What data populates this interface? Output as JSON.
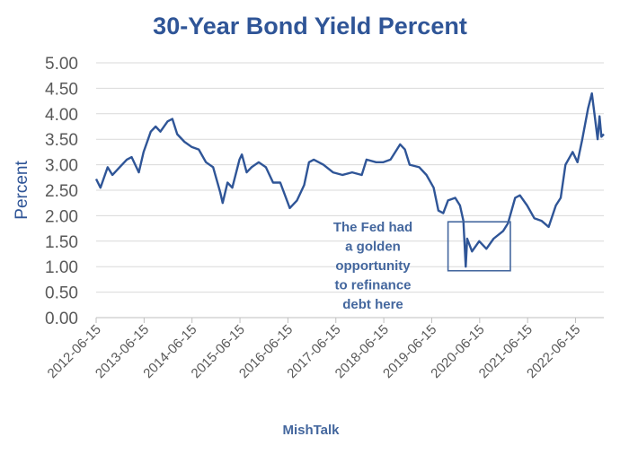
{
  "chart_data": {
    "type": "line",
    "title": "30-Year Bond Yield Percent",
    "xlabel": "",
    "ylabel": "Percent",
    "source_label": "MishTalk",
    "ylim": [
      0,
      5
    ],
    "yticks": [
      "0.00",
      "0.50",
      "1.00",
      "1.50",
      "2.00",
      "2.50",
      "3.00",
      "3.50",
      "4.00",
      "4.50",
      "5.00"
    ],
    "xlim": [
      2012.46,
      2023.05
    ],
    "xticks": [
      {
        "x": 2012.46,
        "label": "2012-06-15"
      },
      {
        "x": 2013.46,
        "label": "2013-06-15"
      },
      {
        "x": 2014.46,
        "label": "2014-06-15"
      },
      {
        "x": 2015.46,
        "label": "2015-06-15"
      },
      {
        "x": 2016.46,
        "label": "2016-06-15"
      },
      {
        "x": 2017.46,
        "label": "2017-06-15"
      },
      {
        "x": 2018.46,
        "label": "2018-06-15"
      },
      {
        "x": 2019.46,
        "label": "2019-06-15"
      },
      {
        "x": 2020.46,
        "label": "2020-06-15"
      },
      {
        "x": 2021.46,
        "label": "2021-06-15"
      },
      {
        "x": 2022.46,
        "label": "2022-06-15"
      }
    ],
    "grid": true,
    "color": "#2F5597",
    "series": [
      {
        "name": "30-Year Bond Yield",
        "x": [
          2012.46,
          2012.55,
          2012.7,
          2012.8,
          2012.95,
          2013.1,
          2013.2,
          2013.35,
          2013.45,
          2013.6,
          2013.7,
          2013.8,
          2013.95,
          2014.05,
          2014.15,
          2014.3,
          2014.45,
          2014.6,
          2014.75,
          2014.9,
          2015.05,
          2015.1,
          2015.2,
          2015.3,
          2015.45,
          2015.5,
          2015.6,
          2015.7,
          2015.85,
          2016.0,
          2016.15,
          2016.3,
          2016.5,
          2016.65,
          2016.8,
          2016.9,
          2017.0,
          2017.2,
          2017.4,
          2017.6,
          2017.8,
          2018.0,
          2018.1,
          2018.3,
          2018.45,
          2018.6,
          2018.8,
          2018.9,
          2019.0,
          2019.2,
          2019.35,
          2019.5,
          2019.6,
          2019.7,
          2019.8,
          2019.95,
          2020.05,
          2020.12,
          2020.17,
          2020.2,
          2020.3,
          2020.45,
          2020.6,
          2020.75,
          2020.95,
          2021.05,
          2021.2,
          2021.3,
          2021.45,
          2021.6,
          2021.75,
          2021.9,
          2022.05,
          2022.15,
          2022.25,
          2022.4,
          2022.5,
          2022.6,
          2022.72,
          2022.8,
          2022.86,
          2022.92,
          2022.96,
          2023.0,
          2023.05
        ],
        "y": [
          2.72,
          2.55,
          2.95,
          2.8,
          2.95,
          3.1,
          3.15,
          2.85,
          3.25,
          3.65,
          3.75,
          3.65,
          3.85,
          3.9,
          3.6,
          3.45,
          3.35,
          3.3,
          3.05,
          2.95,
          2.45,
          2.25,
          2.65,
          2.55,
          3.1,
          3.2,
          2.85,
          2.95,
          3.05,
          2.95,
          2.65,
          2.65,
          2.15,
          2.3,
          2.6,
          3.05,
          3.1,
          3.0,
          2.85,
          2.8,
          2.85,
          2.8,
          3.1,
          3.05,
          3.05,
          3.1,
          3.4,
          3.3,
          3.0,
          2.95,
          2.8,
          2.55,
          2.1,
          2.05,
          2.3,
          2.35,
          2.2,
          1.9,
          1.0,
          1.55,
          1.3,
          1.5,
          1.35,
          1.55,
          1.7,
          1.85,
          2.35,
          2.4,
          2.2,
          1.95,
          1.9,
          1.78,
          2.2,
          2.35,
          3.0,
          3.25,
          3.05,
          3.5,
          4.1,
          4.4,
          3.95,
          3.5,
          3.95,
          3.55,
          3.6
        ]
      }
    ],
    "annotation": {
      "lines": [
        "The Fed had",
        "a golden",
        "opportunity",
        "to refinance",
        "debt here"
      ],
      "box_x": [
        2019.8,
        2021.1
      ],
      "box_y": [
        0.92,
        1.88
      ]
    }
  }
}
